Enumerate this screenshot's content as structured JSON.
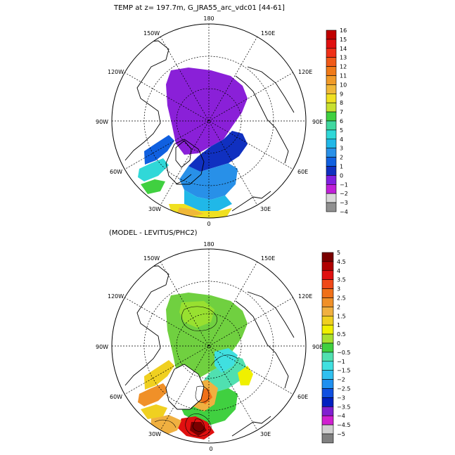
{
  "title_top": "TEMP at z= 197.7m, G_JRA55_arc_vdc01 [44-61]",
  "title_bottom": "(MODEL - LEVITUS/PHC2)",
  "lon_labels": {
    "top": "180",
    "bottom": "0",
    "left": "90W",
    "right": "90E",
    "upper_left": "150W",
    "upper_right": "150E",
    "mid_left": "120W",
    "mid_right": "120E",
    "lower_left": "60W",
    "lower_right": "60E",
    "bottom_left": "30W",
    "bottom_right": "30E"
  },
  "colorbar_top": {
    "labels": [
      "16",
      "15",
      "14",
      "13",
      "12",
      "11",
      "10",
      "9",
      "8",
      "7",
      "6",
      "5",
      "4",
      "3",
      "2",
      "1",
      "0",
      "−1",
      "−2",
      "−3",
      "−4"
    ],
    "colors": [
      "#c00000",
      "#e01010",
      "#f03018",
      "#f05a18",
      "#f07a18",
      "#f09a28",
      "#f0b838",
      "#f0e020",
      "#c8e030",
      "#40d040",
      "#40d8a0",
      "#30d8d8",
      "#20b8e8",
      "#2890e8",
      "#1060e0",
      "#1030c0",
      "#8020e0",
      "#c020d8",
      "#d8d8d8",
      "#909090"
    ]
  },
  "colorbar_bottom": {
    "labels": [
      "5",
      "4.5",
      "4",
      "3.5",
      "3",
      "2.5",
      "2",
      "1.5",
      "1",
      "0.5",
      "0",
      "−0.5",
      "−1",
      "−1.5",
      "−2",
      "−2.5",
      "−3",
      "−3.5",
      "−4",
      "−4.5",
      "−5"
    ],
    "colors": [
      "#7a0000",
      "#b00000",
      "#e01010",
      "#f04818",
      "#f07018",
      "#f09028",
      "#f0b040",
      "#f0d020",
      "#f0f000",
      "#a8e030",
      "#40d040",
      "#50e0b0",
      "#40e0e0",
      "#30c0f0",
      "#2090f0",
      "#1050e0",
      "#0020c0",
      "#8020d0",
      "#d020d0",
      "#d0d0d0",
      "#808080"
    ]
  },
  "colors": {
    "land_outline": "#000000",
    "ocean_bg": "#ffffff",
    "arctic_top": "#8a20d8",
    "arctic_bottom": "#70d040"
  }
}
